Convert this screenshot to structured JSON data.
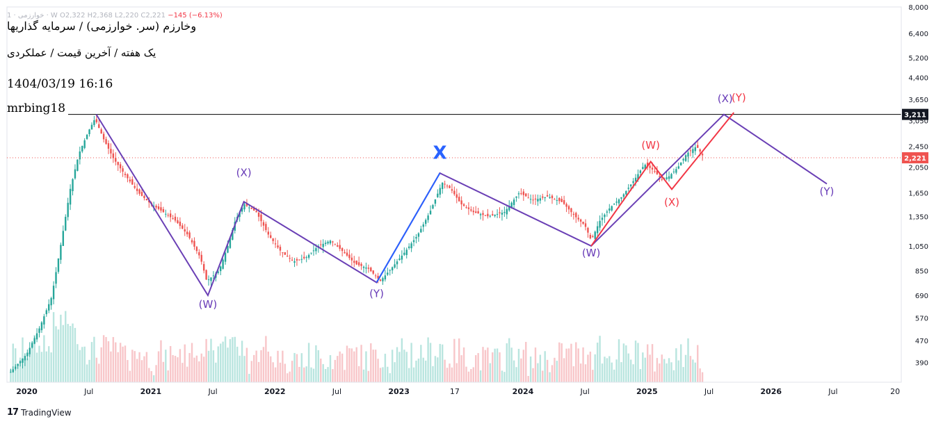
{
  "header": {
    "ohlc_text": "1 · خوارزمی · W  O2,322  H2,368  L2,220  C2,221",
    "change_text": "−145 (−6.13%)",
    "title": "وخارزم (سر. خوارزمی) / سرمایه گذاریها",
    "subtitle": "یک هفته / آخرین قیمت / عملکردی",
    "datetime": "1404/03/19 16:16",
    "author": "mrbing18"
  },
  "footer": {
    "brand": "TradingView",
    "logo_mark": "17"
  },
  "colors": {
    "up": "#26a69a",
    "down": "#ef5350",
    "purple": "#6a3fb5",
    "red": "#f23645",
    "blue": "#2962ff",
    "label_purple": "#673ab7",
    "label_red": "#f23645"
  },
  "chart_data": {
    "type": "candlestick",
    "y_scale": "log",
    "ylim": [
      330,
      8000
    ],
    "y_ticks": [
      "8,000",
      "6,400",
      "5,200",
      "4,400",
      "3,650",
      "3,050",
      "2,450",
      "2,050",
      "1,650",
      "1,350",
      "1,050",
      "850",
      "690",
      "570",
      "470",
      "390"
    ],
    "y_tick_values": [
      8000,
      6400,
      5200,
      4400,
      3650,
      3050,
      2450,
      2050,
      1650,
      1350,
      1050,
      850,
      690,
      570,
      470,
      390
    ],
    "x_ticks": [
      "2020",
      "Jul",
      "2021",
      "Jul",
      "2022",
      "Jul",
      "2023",
      "17",
      "2024",
      "Jul",
      "2025",
      "Jul",
      "2026",
      "Jul",
      "20"
    ],
    "x_tick_times": [
      2020.0,
      2020.5,
      2021.0,
      2021.5,
      2022.0,
      2022.5,
      2023.0,
      2023.45,
      2024.0,
      2024.5,
      2025.0,
      2025.5,
      2026.0,
      2026.5,
      2027.0
    ],
    "xlim": [
      2019.84,
      2027.05
    ],
    "horizontal_line": {
      "value": 3211,
      "label": "3,211"
    },
    "last_price": {
      "value": 2221,
      "label": "2,221"
    },
    "price_path": [
      [
        2019.87,
        360
      ],
      [
        2020.0,
        420
      ],
      [
        2020.1,
        520
      ],
      [
        2020.2,
        680
      ],
      [
        2020.28,
        1100
      ],
      [
        2020.35,
        1700
      ],
      [
        2020.42,
        2300
      ],
      [
        2020.5,
        2800
      ],
      [
        2020.55,
        3100
      ],
      [
        2020.62,
        2600
      ],
      [
        2020.7,
        2200
      ],
      [
        2020.8,
        1900
      ],
      [
        2020.9,
        1650
      ],
      [
        2021.0,
        1500
      ],
      [
        2021.1,
        1400
      ],
      [
        2021.2,
        1300
      ],
      [
        2021.3,
        1150
      ],
      [
        2021.4,
        950
      ],
      [
        2021.45,
        780
      ],
      [
        2021.55,
        850
      ],
      [
        2021.62,
        1050
      ],
      [
        2021.68,
        1300
      ],
      [
        2021.75,
        1500
      ],
      [
        2021.85,
        1400
      ],
      [
        2021.95,
        1150
      ],
      [
        2022.05,
        1000
      ],
      [
        2022.15,
        920
      ],
      [
        2022.25,
        950
      ],
      [
        2022.35,
        1050
      ],
      [
        2022.45,
        1100
      ],
      [
        2022.55,
        1000
      ],
      [
        2022.65,
        900
      ],
      [
        2022.75,
        870
      ],
      [
        2022.85,
        780
      ],
      [
        2022.95,
        880
      ],
      [
        2023.05,
        1000
      ],
      [
        2023.15,
        1150
      ],
      [
        2023.25,
        1400
      ],
      [
        2023.35,
        1800
      ],
      [
        2023.42,
        1700
      ],
      [
        2023.5,
        1500
      ],
      [
        2023.6,
        1400
      ],
      [
        2023.72,
        1350
      ],
      [
        2023.85,
        1400
      ],
      [
        2023.97,
        1650
      ],
      [
        2024.08,
        1550
      ],
      [
        2024.2,
        1600
      ],
      [
        2024.32,
        1520
      ],
      [
        2024.42,
        1350
      ],
      [
        2024.5,
        1250
      ],
      [
        2024.55,
        1100
      ],
      [
        2024.62,
        1300
      ],
      [
        2024.7,
        1450
      ],
      [
        2024.8,
        1600
      ],
      [
        2024.9,
        1850
      ],
      [
        2024.98,
        2100
      ],
      [
        2025.05,
        2000
      ],
      [
        2025.12,
        1850
      ],
      [
        2025.18,
        1900
      ],
      [
        2025.25,
        2050
      ],
      [
        2025.32,
        2300
      ],
      [
        2025.4,
        2450
      ],
      [
        2025.46,
        2221
      ]
    ],
    "volume_scale": "relative",
    "wave_lines": [
      {
        "name": "purple-wxy",
        "color": "purple",
        "points": [
          [
            2020.56,
            3211
          ],
          [
            2021.46,
            690
          ],
          [
            2021.75,
            1530
          ],
          [
            2022.82,
            770
          ],
          [
            2023.33,
            1950
          ],
          [
            2024.55,
            1050
          ],
          [
            2025.62,
            3211
          ],
          [
            2026.45,
            1780
          ]
        ]
      },
      {
        "name": "blue-x",
        "color": "blue",
        "points": [
          [
            2022.82,
            770
          ],
          [
            2023.33,
            1950
          ]
        ]
      },
      {
        "name": "red-wxy",
        "color": "red",
        "points": [
          [
            2024.55,
            1050
          ],
          [
            2025.03,
            2150
          ],
          [
            2025.2,
            1700
          ],
          [
            2025.7,
            3260
          ]
        ]
      }
    ],
    "annotations": [
      {
        "text": "(W)",
        "t": 2021.46,
        "v": 620,
        "color": "label_purple"
      },
      {
        "text": "(X)",
        "t": 2021.75,
        "v": 1900,
        "color": "label_purple"
      },
      {
        "text": "(Y)",
        "t": 2022.82,
        "v": 680,
        "color": "label_purple"
      },
      {
        "text": "X",
        "t": 2023.33,
        "v": 2200,
        "color": "blue",
        "big": true
      },
      {
        "text": "(W)",
        "t": 2024.55,
        "v": 960,
        "color": "label_purple"
      },
      {
        "text": "(W)",
        "t": 2025.03,
        "v": 2400,
        "color": "label_red"
      },
      {
        "text": "(X)",
        "t": 2025.2,
        "v": 1480,
        "color": "label_red"
      },
      {
        "text": "(X)",
        "t": 2025.63,
        "v": 3560,
        "color": "label_purple"
      },
      {
        "text": "(Y)",
        "t": 2025.74,
        "v": 3600,
        "color": "label_red"
      },
      {
        "text": "(Y)",
        "t": 2026.45,
        "v": 1620,
        "color": "label_purple"
      }
    ]
  }
}
